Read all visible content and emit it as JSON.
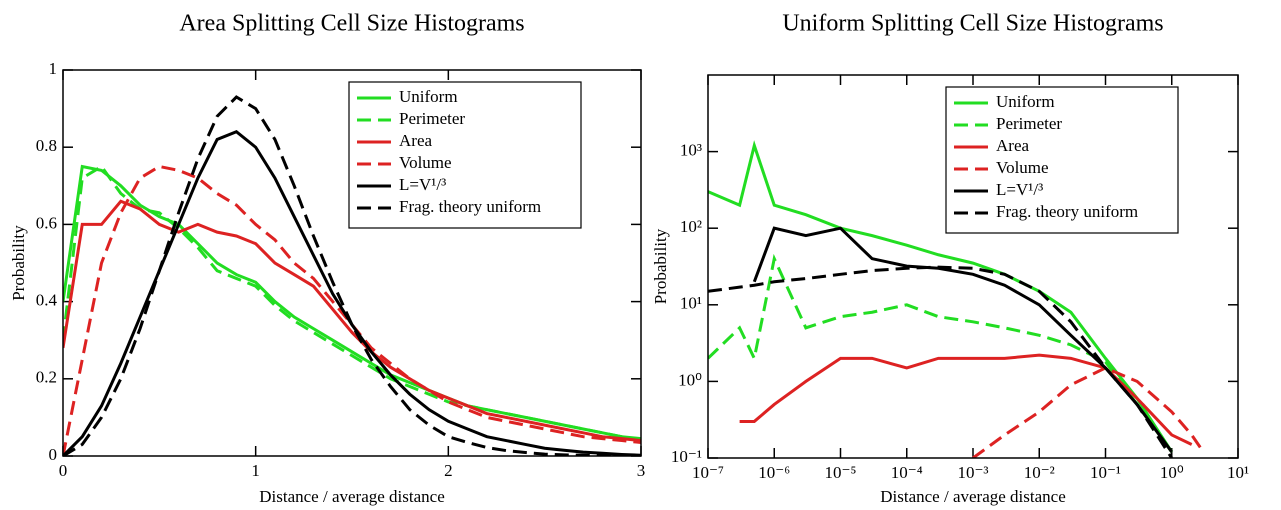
{
  "chart_data": [
    {
      "type": "line",
      "title": "Area Splitting Cell Size Histograms",
      "xlabel": "Distance / average distance",
      "ylabel": "Probability",
      "xlim": [
        0,
        3
      ],
      "ylim": [
        0,
        1
      ],
      "xticks": [
        0,
        1,
        2,
        3
      ],
      "yticks": [
        0,
        0.2,
        0.4,
        0.6,
        0.8,
        1
      ],
      "legend": "upper right",
      "x": [
        0,
        0.1,
        0.2,
        0.3,
        0.4,
        0.5,
        0.6,
        0.7,
        0.8,
        0.9,
        1,
        1.1,
        1.2,
        1.3,
        1.4,
        1.5,
        1.6,
        1.7,
        1.8,
        1.9,
        2,
        2.1,
        2.2,
        2.3,
        2.4,
        2.5,
        2.6,
        2.7,
        2.8,
        2.9,
        3
      ],
      "series": [
        {
          "name": "Uniform",
          "color": "#22dd22",
          "dash": false,
          "values": [
            0.4,
            0.75,
            0.74,
            0.7,
            0.65,
            0.62,
            0.6,
            0.55,
            0.5,
            0.47,
            0.45,
            0.4,
            0.36,
            0.33,
            0.3,
            0.27,
            0.24,
            0.21,
            0.19,
            0.17,
            0.15,
            0.13,
            0.12,
            0.11,
            0.1,
            0.09,
            0.08,
            0.07,
            0.06,
            0.05,
            0.045
          ]
        },
        {
          "name": "Perimeter",
          "color": "#22dd22",
          "dash": true,
          "values": [
            0.3,
            0.72,
            0.75,
            0.68,
            0.64,
            0.63,
            0.59,
            0.54,
            0.48,
            0.46,
            0.44,
            0.39,
            0.35,
            0.32,
            0.29,
            0.26,
            0.23,
            0.2,
            0.18,
            0.16,
            0.14,
            0.13,
            0.12,
            0.11,
            0.1,
            0.09,
            0.08,
            0.07,
            0.06,
            0.05,
            0.04
          ]
        },
        {
          "name": "Area",
          "color": "#dd2222",
          "dash": false,
          "values": [
            0.28,
            0.6,
            0.6,
            0.66,
            0.64,
            0.6,
            0.58,
            0.6,
            0.58,
            0.57,
            0.55,
            0.5,
            0.47,
            0.44,
            0.38,
            0.32,
            0.27,
            0.23,
            0.2,
            0.17,
            0.15,
            0.13,
            0.11,
            0.1,
            0.09,
            0.08,
            0.07,
            0.06,
            0.05,
            0.045,
            0.04
          ]
        },
        {
          "name": "Volume",
          "color": "#dd2222",
          "dash": true,
          "values": [
            0,
            0.25,
            0.5,
            0.63,
            0.72,
            0.75,
            0.74,
            0.72,
            0.68,
            0.65,
            0.6,
            0.56,
            0.5,
            0.46,
            0.4,
            0.34,
            0.28,
            0.24,
            0.2,
            0.17,
            0.14,
            0.12,
            0.1,
            0.09,
            0.08,
            0.07,
            0.06,
            0.05,
            0.045,
            0.04,
            0.035
          ]
        },
        {
          "name": "L=V¹/³",
          "color": "#000000",
          "dash": false,
          "values": [
            0,
            0.05,
            0.13,
            0.24,
            0.36,
            0.48,
            0.6,
            0.72,
            0.82,
            0.84,
            0.8,
            0.72,
            0.62,
            0.52,
            0.42,
            0.34,
            0.27,
            0.21,
            0.16,
            0.12,
            0.09,
            0.07,
            0.05,
            0.04,
            0.03,
            0.02,
            0.015,
            0.01,
            0.007,
            0.004,
            0.002
          ]
        },
        {
          "name": "Frag. theory uniform",
          "color": "#000000",
          "dash": true,
          "values": [
            0,
            0.03,
            0.1,
            0.2,
            0.33,
            0.48,
            0.63,
            0.77,
            0.88,
            0.93,
            0.9,
            0.82,
            0.7,
            0.57,
            0.45,
            0.34,
            0.25,
            0.18,
            0.12,
            0.08,
            0.05,
            0.035,
            0.022,
            0.014,
            0.009,
            0.005,
            0.003,
            0.002,
            0.001,
            0.0005,
            0.0003
          ]
        }
      ]
    },
    {
      "type": "line",
      "title": "Uniform Splitting Cell Size Histograms",
      "xlabel": "Distance / average distance",
      "ylabel": "Probability",
      "xlog": true,
      "ylog": true,
      "xlim": [
        1e-07,
        10
      ],
      "ylim": [
        0.1,
        10000
      ],
      "legend": "upper right",
      "xticks": [
        {
          "value": 1e-07,
          "label": "10⁻⁷"
        },
        {
          "value": 1e-06,
          "label": "10⁻⁶"
        },
        {
          "value": 1e-05,
          "label": "10⁻⁵"
        },
        {
          "value": 0.0001,
          "label": "10⁻⁴"
        },
        {
          "value": 0.001,
          "label": "10⁻³"
        },
        {
          "value": 0.01,
          "label": "10⁻²"
        },
        {
          "value": 0.1,
          "label": "10⁻¹"
        },
        {
          "value": 1,
          "label": "10⁰"
        },
        {
          "value": 10,
          "label": "10¹"
        }
      ],
      "yticks": [
        {
          "value": 0.1,
          "label": "10⁻¹"
        },
        {
          "value": 1,
          "label": "10⁰"
        },
        {
          "value": 10,
          "label": "10¹"
        },
        {
          "value": 100,
          "label": "10²"
        },
        {
          "value": 1000,
          "label": "10³"
        }
      ],
      "x": [
        1e-07,
        3e-07,
        5e-07,
        1e-06,
        3e-06,
        1e-05,
        3e-05,
        0.0001,
        0.0003,
        0.001,
        0.003,
        0.01,
        0.03,
        0.1,
        0.3,
        1,
        2,
        3
      ],
      "series": [
        {
          "name": "Uniform",
          "color": "#22dd22",
          "dash": false,
          "values": [
            300,
            200,
            1200,
            200,
            150,
            100,
            80,
            60,
            45,
            35,
            25,
            15,
            8,
            2,
            0.6,
            0.12,
            null,
            null
          ]
        },
        {
          "name": "Perimeter",
          "color": "#22dd22",
          "dash": true,
          "values": [
            2,
            5,
            2,
            40,
            5,
            7,
            8,
            10,
            7,
            6,
            5,
            4,
            3,
            1.8,
            0.5,
            0.12,
            null,
            null
          ]
        },
        {
          "name": "Area",
          "color": "#dd2222",
          "dash": false,
          "values": [
            null,
            0.3,
            0.3,
            0.5,
            1,
            2,
            2,
            1.5,
            2,
            2,
            2,
            2.2,
            2,
            1.5,
            0.6,
            0.2,
            0.15,
            null
          ]
        },
        {
          "name": "Volume",
          "color": "#dd2222",
          "dash": true,
          "values": [
            null,
            null,
            null,
            null,
            null,
            null,
            null,
            null,
            null,
            0.1,
            0.2,
            0.4,
            0.9,
            1.5,
            1,
            0.4,
            0.2,
            0.12
          ]
        },
        {
          "name": "L=V¹/³",
          "color": "#000000",
          "dash": false,
          "values": [
            null,
            null,
            20,
            100,
            80,
            100,
            40,
            32,
            30,
            25,
            18,
            10,
            4,
            1.5,
            0.5,
            0.12,
            null,
            null
          ]
        },
        {
          "name": "Frag. theory uniform",
          "color": "#000000",
          "dash": true,
          "values": [
            15,
            17,
            18,
            20,
            22,
            25,
            28,
            30,
            31,
            30,
            25,
            15,
            6,
            1.5,
            0.5,
            0.1,
            null,
            null
          ]
        }
      ]
    }
  ]
}
